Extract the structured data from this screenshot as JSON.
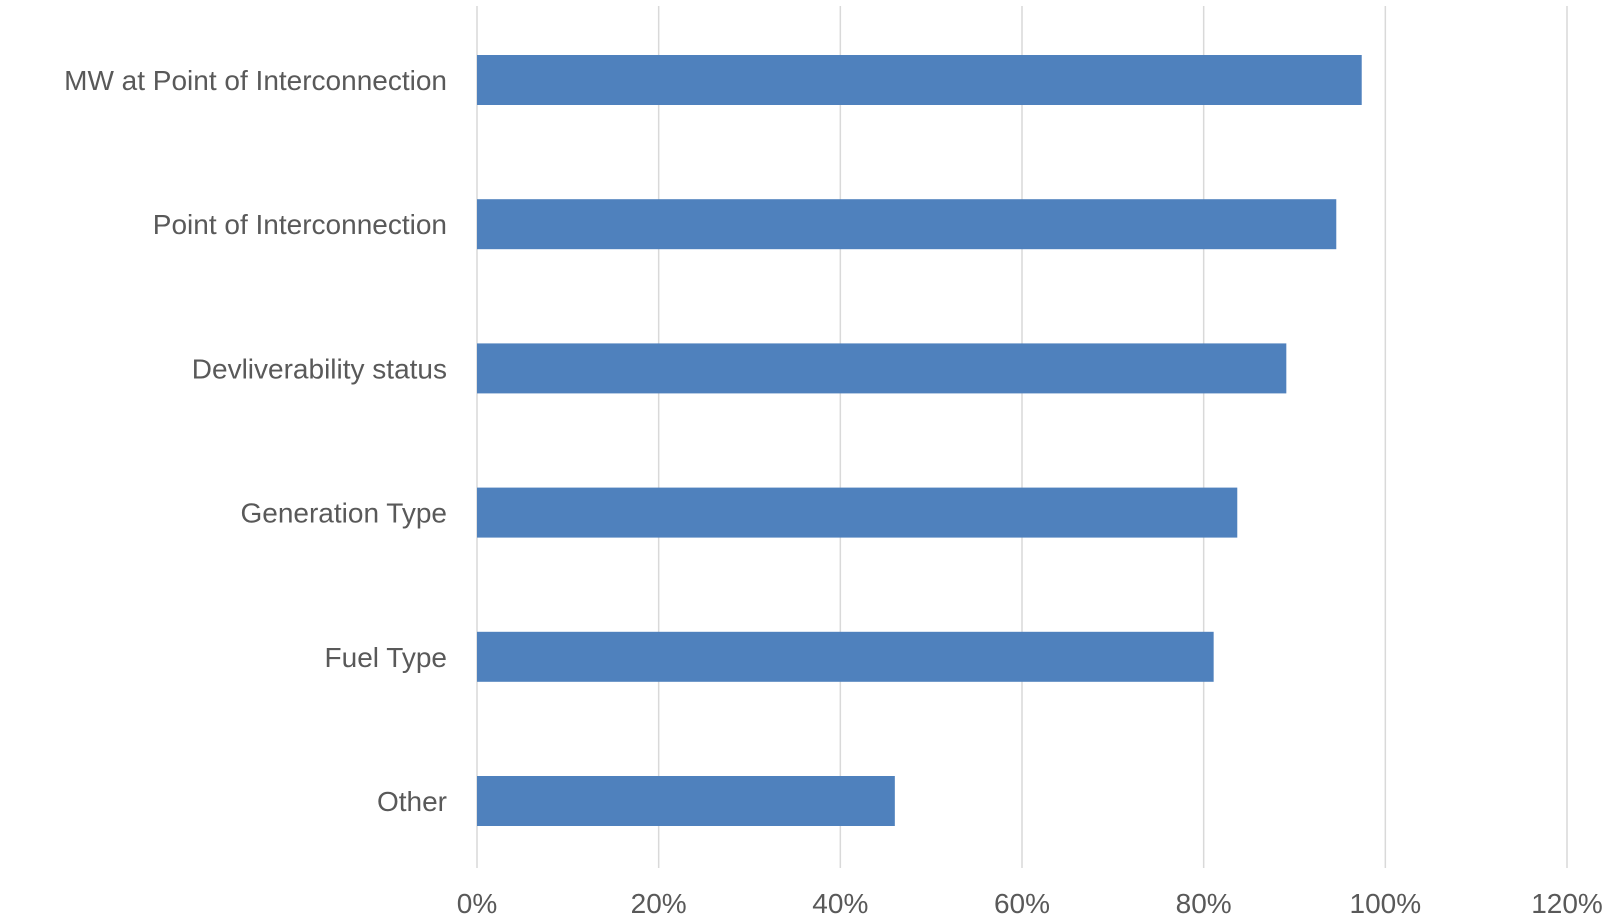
{
  "chart_data": {
    "type": "bar",
    "orientation": "horizontal",
    "categories": [
      "MW at Point of Interconnection",
      "Point of Interconnection",
      "Devliverability status",
      "Generation Type",
      "Fuel Type",
      "Other"
    ],
    "values": [
      0.974,
      0.946,
      0.891,
      0.837,
      0.811,
      0.46
    ],
    "xlim": [
      0,
      1.2
    ],
    "xticks": [
      0,
      0.2,
      0.4,
      0.6,
      0.8,
      1.0,
      1.2
    ],
    "xtick_labels": [
      "0%",
      "20%",
      "40%",
      "60%",
      "80%",
      "100%",
      "120%"
    ],
    "title": "",
    "xlabel": "",
    "ylabel": "",
    "grid": "vertical",
    "legend": "none",
    "bar_color": "#4f81bd",
    "grid_color": "#d9d9d9",
    "text_color": "#595959"
  }
}
